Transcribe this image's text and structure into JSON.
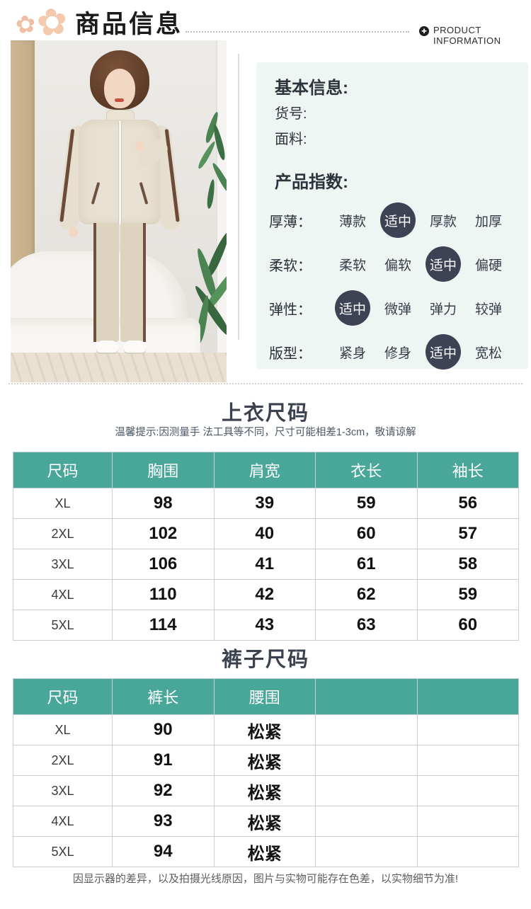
{
  "header": {
    "title": "商品信息",
    "subtitle": "PRODUCT INFORMATION"
  },
  "icons": {
    "flower": "✿",
    "badge": "✚"
  },
  "panel": {
    "basic_info_title": "基本信息:",
    "fields": [
      {
        "label": "货号:"
      },
      {
        "label": "面料:"
      }
    ],
    "index_title": "产品指数:",
    "index_rows": [
      {
        "label": "厚薄：",
        "options": [
          "薄款",
          "适中",
          "厚款",
          "加厚"
        ],
        "selected": 1
      },
      {
        "label": "柔软：",
        "options": [
          "柔软",
          "偏软",
          "适中",
          "偏硬"
        ],
        "selected": 2
      },
      {
        "label": "弹性：",
        "options": [
          "适中",
          "微弹",
          "弹力",
          "较弹"
        ],
        "selected": 0
      },
      {
        "label": "版型：",
        "options": [
          "紧身",
          "修身",
          "适中",
          "宽松"
        ],
        "selected": 2
      }
    ]
  },
  "tops_table": {
    "title": "上衣尺码",
    "note": "温馨提示:因测量手 法工具等不同，尺寸可能相差1-3cm，敬请谅解",
    "headers": [
      "尺码",
      "胸围",
      "肩宽",
      "衣长",
      "袖长"
    ],
    "rows": [
      [
        "XL",
        "98",
        "39",
        "59",
        "56"
      ],
      [
        "2XL",
        "102",
        "40",
        "60",
        "57"
      ],
      [
        "3XL",
        "106",
        "41",
        "61",
        "58"
      ],
      [
        "4XL",
        "110",
        "42",
        "62",
        "59"
      ],
      [
        "5XL",
        "114",
        "43",
        "63",
        "60"
      ]
    ]
  },
  "pants_table": {
    "title": "裤子尺码",
    "headers": [
      "尺码",
      "裤长",
      "腰围",
      "",
      ""
    ],
    "rows": [
      [
        "XL",
        "90",
        "松紧",
        "",
        ""
      ],
      [
        "2XL",
        "91",
        "松紧",
        "",
        ""
      ],
      [
        "3XL",
        "92",
        "松紧",
        "",
        ""
      ],
      [
        "4XL",
        "93",
        "松紧",
        "",
        ""
      ],
      [
        "5XL",
        "94",
        "松紧",
        "",
        ""
      ]
    ]
  },
  "footer": {
    "note": "因显示器的差异，以及拍摄光线原因，图片与实物可能存在色差，以实物细节为准!"
  },
  "colors": {
    "teal": "#49a79a",
    "selected_circle": "#3d4254",
    "panel_bg": "#eef5f3"
  }
}
